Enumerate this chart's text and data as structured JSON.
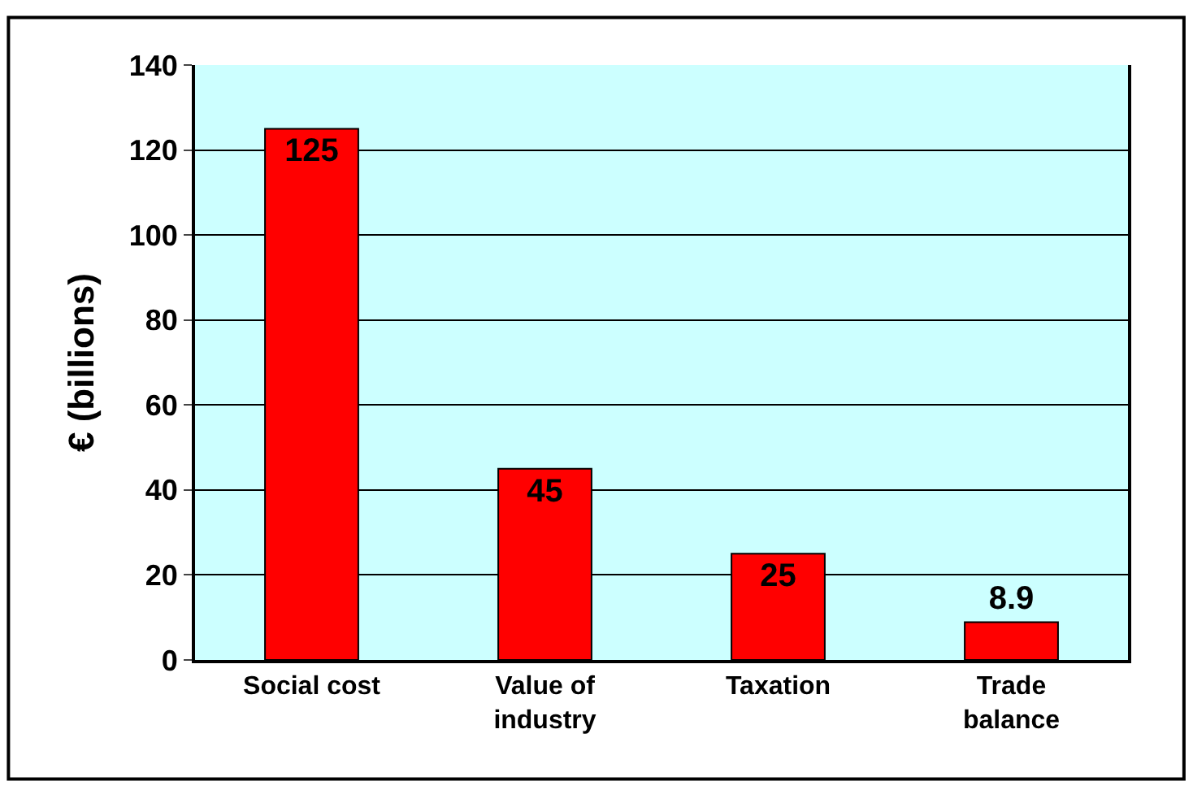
{
  "chart_data": {
    "type": "bar",
    "ylabel": "€ (billions)",
    "categories": [
      "Social cost",
      "Value of industry",
      "Taxation",
      "Trade balance"
    ],
    "values": [
      125,
      45,
      25,
      8.9
    ],
    "color": "#ff0000",
    "ylim": [
      0,
      140
    ],
    "yticks": [
      0,
      20,
      40,
      60,
      80,
      100,
      120,
      140
    ],
    "grid": "y",
    "data_labels": true
  }
}
